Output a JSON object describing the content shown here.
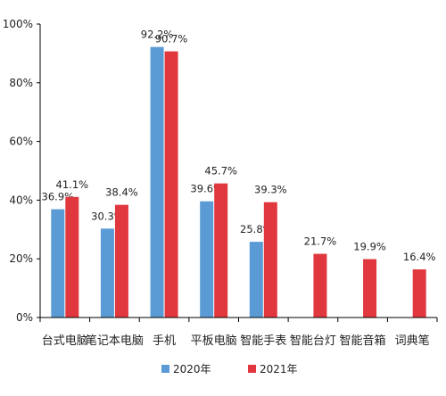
{
  "chart_data": {
    "type": "bar",
    "categories": [
      "台式电脑",
      "笔记本电脑",
      "手机",
      "平板电脑",
      "智能手表",
      "智能台灯",
      "智能音箱",
      "词典笔"
    ],
    "series": [
      {
        "name": "2020年",
        "values": [
          36.9,
          30.3,
          92.2,
          39.6,
          25.8,
          null,
          null,
          null
        ],
        "labels": [
          "36.9%",
          "30.3%",
          "92.2%",
          "39.6%",
          "25.8%",
          null,
          null,
          null
        ]
      },
      {
        "name": "2021年",
        "values": [
          41.1,
          38.4,
          90.7,
          45.7,
          39.3,
          21.7,
          19.9,
          16.4
        ],
        "labels": [
          "41.1%",
          "38.4%",
          "90.7%",
          "45.7%",
          "39.3%",
          "21.7%",
          "19.9%",
          "16.4%"
        ]
      }
    ],
    "yticks": [
      "0%",
      "20%",
      "40%",
      "60%",
      "80%",
      "100%"
    ],
    "ylim": [
      0,
      100
    ],
    "grid": false,
    "legend_position": "bottom",
    "colors": {
      "2020年": "#5b9bd5",
      "2021年": "#e0383e",
      "axis": "#000000"
    }
  }
}
